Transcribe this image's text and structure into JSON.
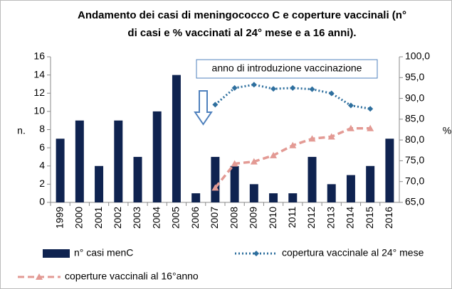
{
  "chart_data": {
    "type": "bar",
    "title": "Andamento dei casi di meningococco C  e coperture vaccinali (n° di casi  e % vaccinati al 24° mese e a 16 anni).",
    "title_lines": [
      "Andamento dei casi di meningococco C  e coperture vaccinali (n°",
      "di casi  e % vaccinati al 24° mese e a 16 anni)."
    ],
    "annotation": "anno di introduzione vaccinazione",
    "ylabel": "n.",
    "y2label": "%",
    "categories": [
      "1999",
      "2000",
      "2001",
      "2002",
      "2003",
      "2004",
      "2005",
      "2006",
      "2007",
      "2008",
      "2009",
      "2010",
      "2011",
      "2012",
      "2013",
      "2014",
      "2015",
      "2016"
    ],
    "series": [
      {
        "name": "n° casi menC",
        "type": "bar",
        "axis": "y",
        "color": "#0f2350",
        "values": [
          7,
          9,
          4,
          9,
          5,
          10,
          14,
          1,
          5,
          4,
          2,
          1,
          1,
          5,
          2,
          3,
          4,
          7
        ]
      },
      {
        "name": "copertura vaccinale al 24° mese",
        "type": "line",
        "axis": "y2",
        "color": "#2e6f9e",
        "marker": "diamond",
        "dash": "dotted",
        "values": [
          null,
          null,
          null,
          null,
          null,
          null,
          null,
          null,
          88.5,
          92.5,
          93.3,
          92.3,
          92.5,
          92.2,
          91.2,
          88.3,
          87.5,
          null
        ]
      },
      {
        "name": "coperture vaccinali al 16°anno",
        "type": "line",
        "axis": "y2",
        "color": "#e39a94",
        "marker": "triangle",
        "dash": "dashed",
        "values": [
          null,
          null,
          null,
          null,
          null,
          null,
          null,
          null,
          68.5,
          74.3,
          74.8,
          76.3,
          78.7,
          80.3,
          80.8,
          82.8,
          82.8,
          null
        ]
      }
    ],
    "ylim": [
      0,
      16
    ],
    "yticks": [
      0,
      2,
      4,
      6,
      8,
      10,
      12,
      14,
      16
    ],
    "y2lim": [
      65,
      100
    ],
    "y2ticks": [
      {
        "value": 65,
        "label": "65,0"
      },
      {
        "value": 70,
        "label": "70,0"
      },
      {
        "value": 75,
        "label": "75,0"
      },
      {
        "value": 80,
        "label": "80,0"
      },
      {
        "value": 85,
        "label": "85,0"
      },
      {
        "value": 90,
        "label": "90,0"
      },
      {
        "value": 95,
        "label": "95,0"
      },
      {
        "value": 100,
        "label": "100,0"
      }
    ],
    "grid": false,
    "legend": "bottom"
  }
}
